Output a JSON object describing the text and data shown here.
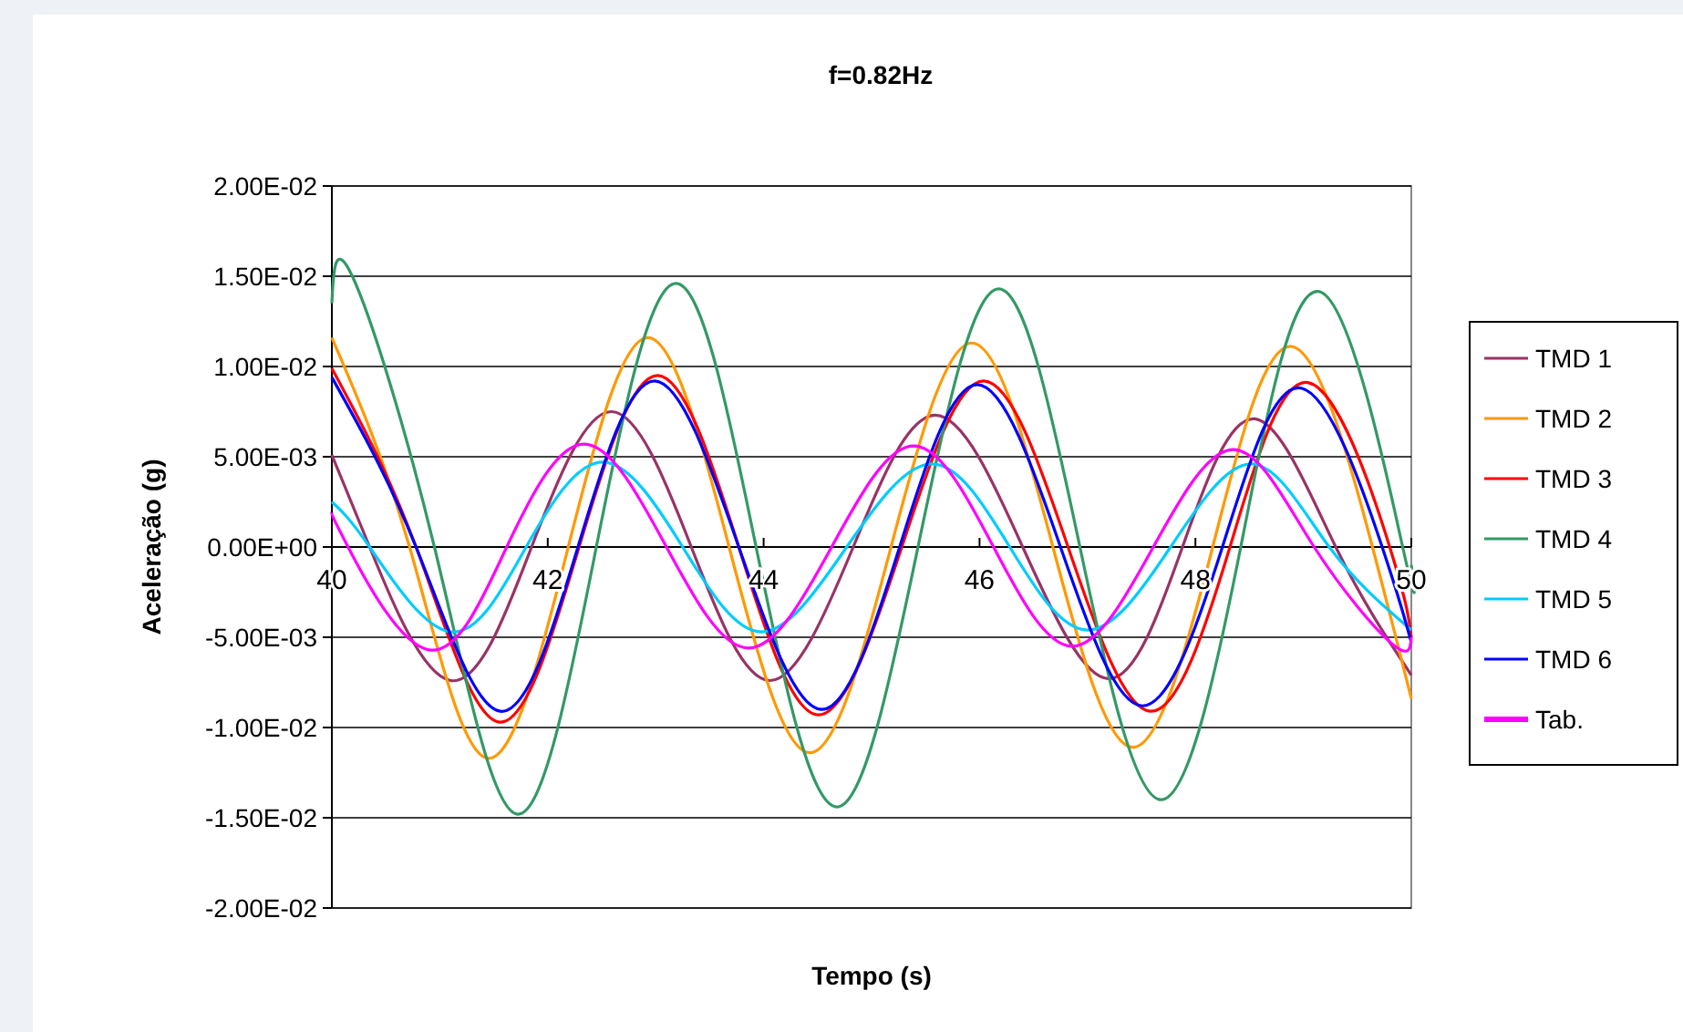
{
  "chart_data": {
    "type": "line",
    "title": "f=0.82Hz",
    "xlabel": "Tempo (s)",
    "ylabel": "Aceleração (g)",
    "xlim": [
      40,
      50
    ],
    "xticks": [
      40,
      42,
      44,
      46,
      48,
      50
    ],
    "ylim": [
      -0.02,
      0.02
    ],
    "yticks": [
      {
        "value": -0.02,
        "label": "-2.00E-02"
      },
      {
        "value": -0.015,
        "label": "-1.50E-02"
      },
      {
        "value": -0.01,
        "label": "-1.00E-02"
      },
      {
        "value": -0.005,
        "label": "-5.00E-03"
      },
      {
        "value": 0,
        "label": "0.00E+00"
      },
      {
        "value": 0.005,
        "label": "5.00E-03"
      },
      {
        "value": 0.01,
        "label": "1.00E-02"
      },
      {
        "value": 0.015,
        "label": "1.50E-02"
      },
      {
        "value": 0.02,
        "label": "2.00E-02"
      }
    ],
    "grid": "y",
    "legend": "right",
    "marker": "none",
    "line_style": "solid",
    "series": [
      {
        "name": "TMD 1",
        "color": "#993366",
        "x": [
          40,
          40.35,
          41.1,
          41.85,
          42.59,
          43.33,
          44.06,
          44.83,
          45.59,
          46.4,
          47.2,
          47.88,
          48.55,
          49.3,
          50
        ],
        "values": [
          0.0051,
          0,
          -0.0074,
          0,
          0.0075,
          0,
          -0.0074,
          0,
          0.0073,
          0,
          -0.0073,
          0,
          0.0071,
          0,
          -0.0071
        ]
      },
      {
        "name": "TMD 2",
        "color": "#ff9900",
        "x": [
          40,
          40.72,
          41.44,
          42.19,
          42.93,
          43.68,
          44.43,
          45.18,
          45.93,
          46.68,
          47.42,
          48.16,
          48.9,
          49.64,
          50
        ],
        "values": [
          0.0116,
          0,
          -0.0117,
          0,
          0.0116,
          0,
          -0.0114,
          0,
          0.0113,
          0,
          -0.0111,
          0,
          0.0111,
          0,
          -0.0084
        ]
      },
      {
        "name": "TMD 3",
        "color": "#ff0000",
        "x": [
          40,
          40.78,
          41.55,
          42.29,
          43.02,
          43.77,
          44.51,
          45.28,
          46.04,
          46.82,
          47.59,
          48.32,
          49.05,
          49.8,
          50
        ],
        "values": [
          0.0099,
          0,
          -0.0097,
          0,
          0.0095,
          0,
          -0.0093,
          0,
          0.0092,
          0,
          -0.0091,
          0,
          0.0091,
          0,
          -0.005
        ]
      },
      {
        "name": "TMD 4",
        "color": "#339966",
        "x": [
          40,
          40.19,
          40.95,
          41.72,
          42.45,
          43.19,
          43.93,
          44.68,
          45.43,
          46.18,
          46.93,
          47.68,
          48.42,
          49.17,
          49.92,
          50
        ],
        "values": [
          0.0135,
          0.015,
          0,
          -0.0148,
          0,
          0.0146,
          0,
          -0.0144,
          0,
          0.0143,
          0,
          -0.014,
          0,
          0.0141,
          0,
          -0.001
        ]
      },
      {
        "name": "TMD 5",
        "color": "#00ccff",
        "x": [
          40,
          40.35,
          41.1,
          41.8,
          42.51,
          43.25,
          43.98,
          44.77,
          45.56,
          46.28,
          47.0,
          47.77,
          48.53,
          49.24,
          50
        ],
        "values": [
          0.0025,
          0,
          -0.0047,
          0,
          0.0047,
          0,
          -0.0047,
          0,
          0.0046,
          0,
          -0.0046,
          0,
          0.0046,
          0,
          -0.0046
        ]
      },
      {
        "name": "TMD 6",
        "color": "#0000ff",
        "x": [
          40,
          40.78,
          41.56,
          42.28,
          42.99,
          43.77,
          44.54,
          45.26,
          45.98,
          46.75,
          47.51,
          48.25,
          48.98,
          49.73,
          50
        ],
        "values": [
          0.0094,
          0,
          -0.0091,
          0,
          0.0092,
          0,
          -0.009,
          0,
          0.009,
          0,
          -0.0088,
          0,
          0.0088,
          0,
          -0.0053
        ]
      },
      {
        "name": "Tab.",
        "color": "#ff00ff",
        "x": [
          40,
          40.15,
          40.9,
          41.62,
          42.34,
          43.1,
          43.86,
          44.63,
          45.39,
          46.13,
          46.86,
          47.61,
          48.36,
          49.1,
          49.83,
          50
        ],
        "values": [
          0.0019,
          0,
          -0.0057,
          0,
          0.0057,
          0,
          -0.0056,
          0,
          0.0056,
          0,
          -0.0055,
          0,
          0.0054,
          0,
          -0.0054,
          -0.005
        ]
      }
    ]
  }
}
